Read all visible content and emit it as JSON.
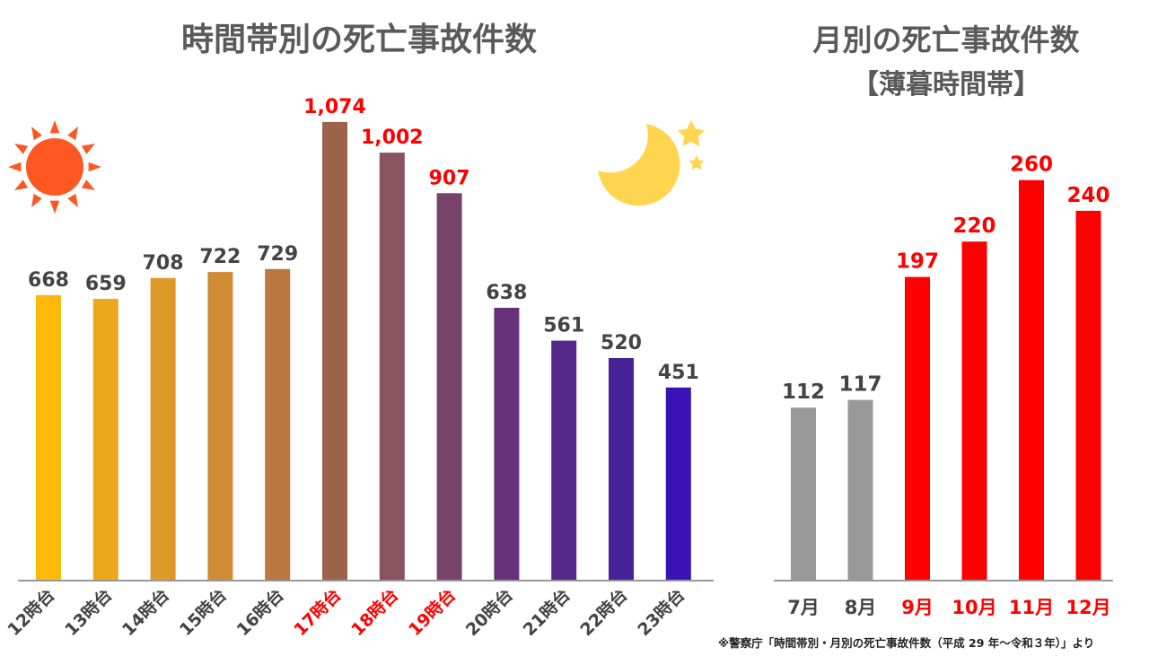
{
  "chart_data": [
    {
      "type": "bar",
      "title": "時間帯別の死亡事故件数",
      "categories": [
        "12時台",
        "13時台",
        "14時台",
        "15時台",
        "16時台",
        "17時台",
        "18時台",
        "19時台",
        "20時台",
        "21時台",
        "22時台",
        "23時台"
      ],
      "values": [
        668,
        659,
        708,
        722,
        729,
        1074,
        1002,
        907,
        638,
        561,
        520,
        451
      ],
      "value_labels": [
        "668",
        "659",
        "708",
        "722",
        "729",
        "1,074",
        "1,002",
        "907",
        "638",
        "561",
        "520",
        "451"
      ],
      "bar_colors": [
        "#FDB909",
        "#EBA81D",
        "#DD9A27",
        "#CF8C33",
        "#B97840",
        "#9C6349",
        "#8B525F",
        "#78436A",
        "#66317A",
        "#54298A",
        "#462296",
        "#3A12B5"
      ],
      "highlight": [
        false,
        false,
        false,
        false,
        false,
        true,
        true,
        true,
        false,
        false,
        false,
        false
      ],
      "ylim": [
        0,
        1100
      ],
      "grid": false,
      "xlabel": "",
      "ylabel": ""
    },
    {
      "type": "bar",
      "title": "月別の死亡事故件数",
      "subtitle": "【薄暮時間帯】",
      "categories": [
        "7月",
        "8月",
        "9月",
        "10月",
        "11月",
        "12月"
      ],
      "values": [
        112,
        117,
        197,
        220,
        260,
        240
      ],
      "value_labels": [
        "112",
        "117",
        "197",
        "220",
        "260",
        "240"
      ],
      "bar_colors": [
        "#999999",
        "#999999",
        "#FF0000",
        "#FF0000",
        "#FF0000",
        "#FF0000"
      ],
      "highlight": [
        false,
        false,
        true,
        true,
        true,
        true
      ],
      "ylim": [
        0,
        290
      ],
      "grid": false,
      "xlabel": "",
      "ylabel": ""
    }
  ],
  "colors": {
    "title": "#5a5a5a",
    "label_normal": "#444444",
    "label_highlight": "#ff0000",
    "axis": "#999999",
    "sun": "#FF5722",
    "moon": "#FFD54F"
  },
  "icons": [
    "sun-icon",
    "moon-icon",
    "star-icon"
  ],
  "source_note": "※警察庁「時間帯別・月別の死亡事故件数（平成 29 年～令和３年）」より"
}
